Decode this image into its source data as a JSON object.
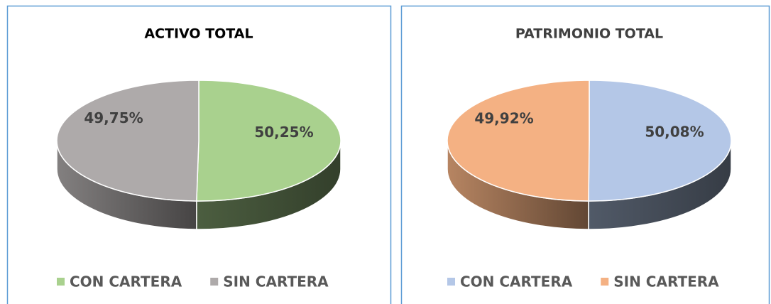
{
  "chart_data": [
    {
      "type": "pie",
      "title": "ACTIVO TOTAL",
      "categories": [
        "CON CARTERA",
        "SIN CARTERA"
      ],
      "values": [
        50.25,
        49.75
      ],
      "value_labels": [
        "50,25%",
        "49,75%"
      ],
      "colors": [
        "#a9d18e",
        "#aeaaaa"
      ],
      "legend": "bottom"
    },
    {
      "type": "pie",
      "title": "PATRIMONIO TOTAL",
      "categories": [
        "CON CARTERA",
        "SIN CARTERA"
      ],
      "values": [
        50.08,
        49.92
      ],
      "value_labels": [
        "50,08%",
        "49,92%"
      ],
      "colors": [
        "#b4c7e7",
        "#f4b183"
      ],
      "legend": "bottom"
    }
  ]
}
